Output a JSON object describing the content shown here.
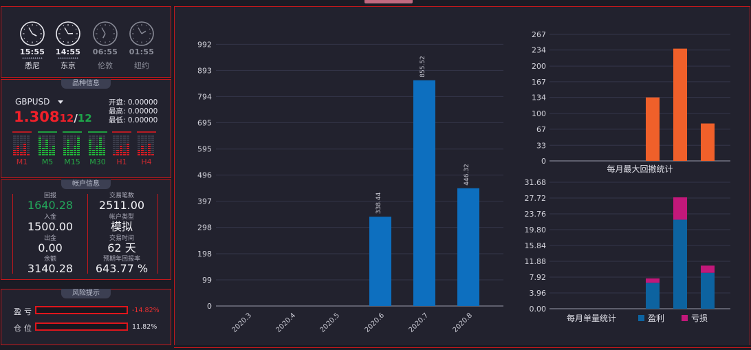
{
  "clocks": [
    {
      "city": "悉尼",
      "time": "15:55",
      "active": true,
      "h": 15,
      "m": 55
    },
    {
      "city": "东京",
      "time": "14:55",
      "active": true,
      "h": 14,
      "m": 55
    },
    {
      "city": "伦敦",
      "time": "06:55",
      "active": false,
      "h": 6,
      "m": 55
    },
    {
      "city": "纽约",
      "time": "01:55",
      "active": false,
      "h": 1,
      "m": 55
    }
  ],
  "symbol_panel": {
    "title": "品种信息",
    "symbol": "GBPUSD",
    "price_main": "1.308",
    "price_part1": "12",
    "price_sep": "/",
    "price_part2": "12",
    "open_label": "开盘:",
    "open": "0.00000",
    "high_label": "最高:",
    "high": "0.00000",
    "low_label": "最低:",
    "low": "0.00000",
    "timeframes": [
      {
        "label": "M1",
        "trend": "red"
      },
      {
        "label": "M5",
        "trend": "green"
      },
      {
        "label": "M15",
        "trend": "green"
      },
      {
        "label": "M30",
        "trend": "green"
      },
      {
        "label": "H1",
        "trend": "red"
      },
      {
        "label": "H4",
        "trend": "red"
      }
    ]
  },
  "account": {
    "title": "帐户信息",
    "left": [
      {
        "label": "回报",
        "value": "1640.28",
        "color": "#23a55a"
      },
      {
        "label": "入金",
        "value": "1500.00",
        "color": "#f2f2f6"
      },
      {
        "label": "出金",
        "value": "0.00",
        "color": "#f2f2f6"
      },
      {
        "label": "余额",
        "value": "3140.28",
        "color": "#f2f2f6"
      }
    ],
    "right": [
      {
        "label": "交易笔数",
        "value": "2511.00"
      },
      {
        "label": "帐户类型",
        "value": "模拟"
      },
      {
        "label": "交易时间",
        "value": "62 天"
      },
      {
        "label": "预期年回报率",
        "value": "643.77 %"
      }
    ]
  },
  "risk": {
    "title": "风险提示",
    "pnl_label": "盈亏",
    "pnl_value": "-14.82%",
    "pnl_color": "#f03030",
    "pos_label": "仓位",
    "pos_value": "11.82%",
    "pos_color": "#e0e0e8"
  },
  "chart_data": [
    {
      "type": "bar",
      "categories": [
        "2020.3",
        "2020.4",
        "2020.5",
        "2020.6",
        "2020.7",
        "2020.8"
      ],
      "values": [
        0,
        0,
        0,
        338.44,
        855.52,
        446.32
      ],
      "data_labels": [
        "",
        "",
        "",
        "338.44",
        "855.52",
        "446.32"
      ],
      "yticks": [
        0,
        99,
        198,
        298,
        397,
        496,
        595,
        695,
        794,
        893,
        992
      ],
      "ylim": [
        0,
        1092
      ],
      "color": "#0d6fbf"
    },
    {
      "type": "bar",
      "xlabel": "每月最大回撤统计",
      "categories": [
        "",
        "",
        "",
        "",
        "",
        ""
      ],
      "values": [
        0,
        0,
        0,
        134,
        237,
        79
      ],
      "yticks": [
        0,
        33,
        67,
        100,
        134,
        167,
        200,
        234,
        267
      ],
      "ylim": [
        0,
        267
      ],
      "color": "#f0602a"
    },
    {
      "type": "bar",
      "xlabel": "每月单量统计",
      "stacked": true,
      "categories": [
        "",
        "",
        "",
        "",
        "",
        ""
      ],
      "series": [
        {
          "name": "盈利",
          "values": [
            0,
            0,
            0,
            6.5,
            22.3,
            9.0
          ],
          "color": "#0d63a0"
        },
        {
          "name": "亏损",
          "values": [
            0,
            0,
            0,
            1.1,
            5.6,
            1.8
          ],
          "color": "#c2187a"
        }
      ],
      "yticks": [
        "0.00",
        "3.96",
        "7.92",
        "11.88",
        "15.84",
        "19.80",
        "23.76",
        "27.72",
        "31.68"
      ],
      "ylim": [
        0,
        31.68
      ]
    }
  ]
}
